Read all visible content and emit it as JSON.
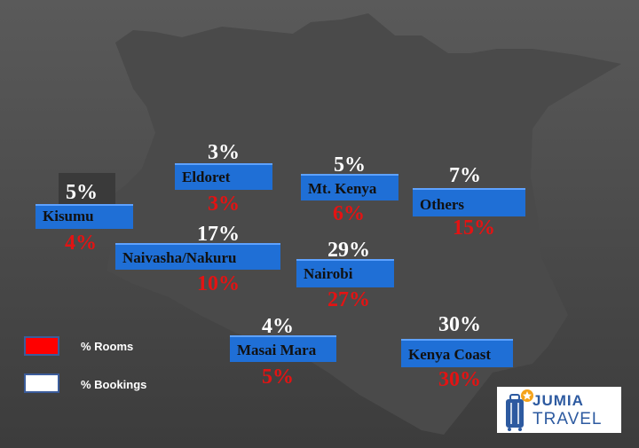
{
  "regions": [
    {
      "name": "Kisumu",
      "bookings": "5%",
      "rooms": "4%"
    },
    {
      "name": "Eldoret",
      "bookings": "3%",
      "rooms": "3%"
    },
    {
      "name": "Mt. Kenya",
      "bookings": "5%",
      "rooms": "6%"
    },
    {
      "name": "Others",
      "bookings": "7%",
      "rooms": "15%"
    },
    {
      "name": "Naivasha/Nakuru",
      "bookings": "17%",
      "rooms": "10%"
    },
    {
      "name": "Nairobi",
      "bookings": "29%",
      "rooms": "27%"
    },
    {
      "name": "Masai Mara",
      "bookings": "4%",
      "rooms": "5%"
    },
    {
      "name": "Kenya Coast",
      "bookings": "30%",
      "rooms": "30%"
    }
  ],
  "legend": {
    "rooms_label": "% Rooms",
    "bookings_label": "% Bookings",
    "rooms_color": "#ff0000",
    "bookings_color": "#ffffff"
  },
  "colors": {
    "label_bg": "#1f6fd6",
    "bookings_text": "#ffffff",
    "rooms_text": "#e31313",
    "map_fill": "#4a4a4a"
  },
  "logo": {
    "word1": "JUMIA",
    "word2": "TRAVEL",
    "icon": "suitcase-star-icon"
  }
}
